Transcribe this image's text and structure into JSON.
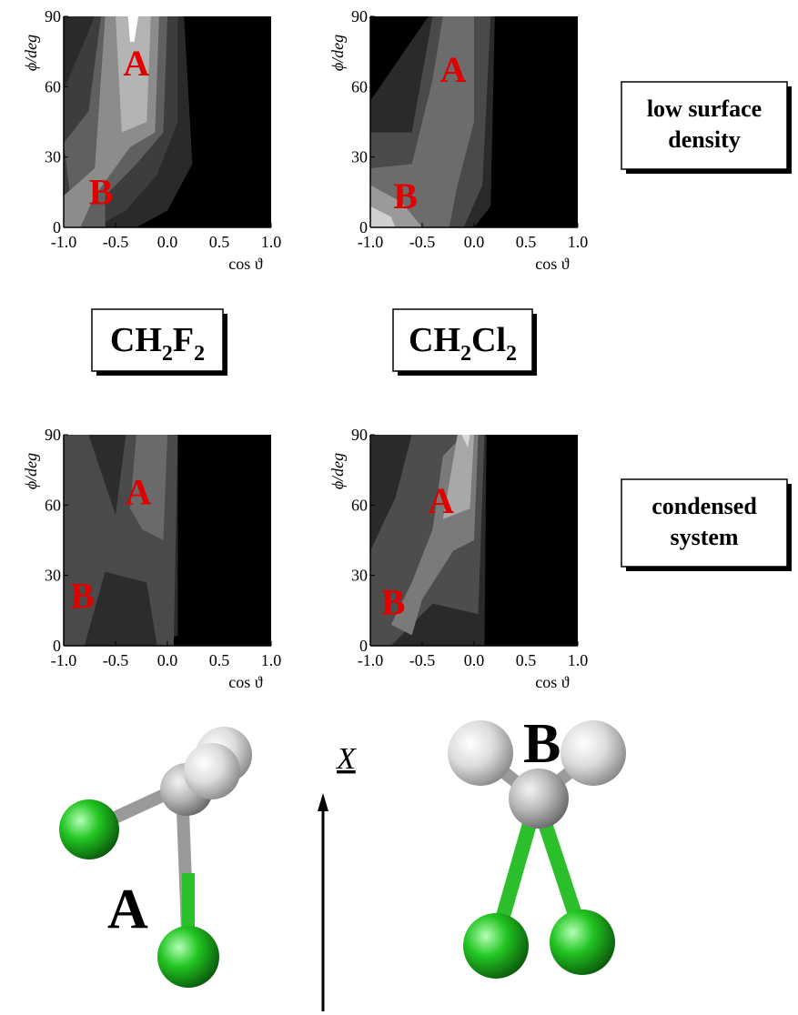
{
  "panels": [
    {
      "xlim": [
        -1,
        1
      ],
      "ylim": [
        0,
        90
      ],
      "xticks": [
        {
          "value": -1,
          "label": "-1.0"
        },
        {
          "value": -0.5,
          "label": "-0.5"
        },
        {
          "value": 0,
          "label": "0.0"
        },
        {
          "value": 0.5,
          "label": "0.5"
        },
        {
          "value": 1,
          "label": "1.0"
        }
      ],
      "yticks": [
        0,
        30,
        60,
        90
      ],
      "xlabel": "cos ϑ",
      "ylabel": "ϕ/deg",
      "annotations": [
        "A",
        "B"
      ]
    },
    {
      "xlim": [
        -1,
        1
      ],
      "ylim": [
        0,
        90
      ],
      "xticks": [
        {
          "value": -1,
          "label": "-1.0"
        },
        {
          "value": -0.5,
          "label": "-0.5"
        },
        {
          "value": 0,
          "label": "0.0"
        },
        {
          "value": 0.5,
          "label": "0.5"
        },
        {
          "value": 1,
          "label": "1.0"
        }
      ],
      "yticks": [
        0,
        30,
        60,
        90
      ],
      "xlabel": "cos ϑ",
      "ylabel": "ϕ/deg",
      "annotations": [
        "A",
        "B"
      ]
    },
    {
      "xlim": [
        -1,
        1
      ],
      "ylim": [
        0,
        90
      ],
      "xticks": [
        {
          "value": -1,
          "label": "-1.0"
        },
        {
          "value": -0.5,
          "label": "-0.5"
        },
        {
          "value": 0,
          "label": "0.0"
        },
        {
          "value": 0.5,
          "label": "0.5"
        },
        {
          "value": 1,
          "label": "1.0"
        }
      ],
      "yticks": [
        0,
        30,
        60,
        90
      ],
      "xlabel": "cos ϑ",
      "ylabel": "ϕ/deg",
      "annotations": [
        "A",
        "B"
      ]
    },
    {
      "xlim": [
        -1,
        1
      ],
      "ylim": [
        0,
        90
      ],
      "xticks": [
        {
          "value": -1,
          "label": "-1.0"
        },
        {
          "value": -0.5,
          "label": "-0.5"
        },
        {
          "value": 0,
          "label": "0.0"
        },
        {
          "value": 0.5,
          "label": "0.5"
        },
        {
          "value": 1,
          "label": "1.0"
        }
      ],
      "yticks": [
        0,
        30,
        60,
        90
      ],
      "xlabel": "cos ϑ",
      "ylabel": "ϕ/deg",
      "annotations": [
        "A",
        "B"
      ]
    }
  ],
  "state_boxes": [
    [
      "low surface",
      "density"
    ],
    [
      "condensed",
      "system"
    ]
  ],
  "molecules": [
    {
      "parts": [
        "CH",
        "2",
        "F",
        "2"
      ]
    },
    {
      "parts": [
        "CH",
        "2",
        "Cl",
        "2"
      ]
    }
  ],
  "orientations": {
    "left": "A",
    "right": "B",
    "axis": "X"
  }
}
